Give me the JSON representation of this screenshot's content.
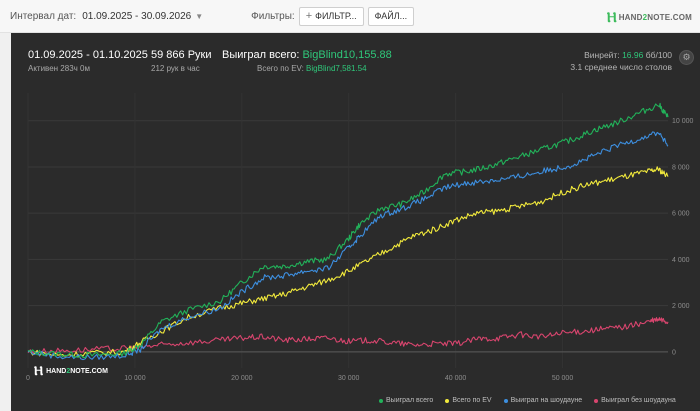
{
  "topbar": {
    "interval_label": "Интервал дат:",
    "date_range": "01.09.2025 - 30.09.2026",
    "filters_label": "Фильтры:",
    "filter_button": "ФИЛЬТР...",
    "file_button": "ФАЙЛ...",
    "logo_prefix": "HAND",
    "logo_two": "2",
    "logo_suffix": "NOTE.COM"
  },
  "header": {
    "period": "01.09.2025 - 01.10.2025",
    "active": "Активен 283ч 0м",
    "hands": "59 866 Руки",
    "hands_per_hour": "212 рук в час",
    "won_total_label": "Выиграл всего:",
    "won_total_value": "BigBlind10,155.88",
    "ev_label": "Всего по EV:",
    "ev_value": "BigBlind7,581.54",
    "winrate_label": "Винрейт:",
    "winrate_value": "16.96",
    "winrate_unit": "бб/100",
    "tables": "3.1 среднее число столов"
  },
  "watermark": {
    "prefix": "HAND",
    "two": "2",
    "suffix": "NOTE.COM"
  },
  "colors": {
    "won_total": "#22b25a",
    "ev": "#f2ea3c",
    "showdown": "#3d8fe0",
    "no_showdown": "#d8456e"
  },
  "chart_data": {
    "type": "line",
    "x_ticks": [
      "0",
      "10 000",
      "20 000",
      "30 000",
      "40 000",
      "50 000"
    ],
    "y_ticks": [
      "0",
      "2 000",
      "4 000",
      "6 000",
      "8 000",
      "10 000"
    ],
    "xlim": [
      0,
      59866
    ],
    "ylim": [
      -700,
      11200
    ],
    "grid": true,
    "legend_position": "bottom-right",
    "series": [
      {
        "name": "Выиграл всего",
        "color": "#22b25a",
        "x": [
          0,
          3000,
          6000,
          9000,
          10500,
          12500,
          15000,
          18000,
          20000,
          22000,
          24000,
          26000,
          28000,
          30000,
          31000,
          33000,
          35000,
          37000,
          39000,
          41000,
          43000,
          45000,
          47000,
          49000,
          51000,
          53000,
          55000,
          57000,
          59000,
          59866
        ],
        "y": [
          0,
          -100,
          -150,
          -50,
          300,
          1300,
          1800,
          2200,
          3000,
          3700,
          3700,
          3900,
          4000,
          4900,
          5500,
          6200,
          6400,
          6900,
          7700,
          7800,
          8000,
          8300,
          8600,
          8900,
          9200,
          9600,
          9900,
          10300,
          10700,
          10156
        ]
      },
      {
        "name": "Всего по EV",
        "color": "#f2ea3c",
        "x": [
          0,
          3000,
          6000,
          9000,
          10500,
          12500,
          15000,
          18000,
          20000,
          22000,
          24000,
          26000,
          28000,
          30000,
          32000,
          34000,
          36000,
          38000,
          40000,
          42000,
          44000,
          46000,
          48000,
          50000,
          52000,
          54000,
          56000,
          58000,
          59000,
          59866
        ],
        "y": [
          0,
          -150,
          -50,
          0,
          400,
          900,
          1500,
          1900,
          2100,
          2300,
          2500,
          2800,
          3100,
          3500,
          4000,
          4500,
          5000,
          5300,
          5700,
          6000,
          6100,
          6300,
          6500,
          6900,
          7200,
          7400,
          7600,
          7800,
          7900,
          7582
        ]
      },
      {
        "name": "Выиграл на шоудауне",
        "color": "#3d8fe0",
        "x": [
          0,
          3000,
          6000,
          9000,
          10500,
          12500,
          15000,
          18000,
          20000,
          22000,
          24000,
          26000,
          28000,
          30000,
          31000,
          33000,
          35000,
          37000,
          39000,
          41000,
          43000,
          45000,
          47000,
          49000,
          51000,
          53000,
          55000,
          57000,
          59000,
          59866
        ],
        "y": [
          0,
          -200,
          -250,
          -150,
          100,
          1000,
          1500,
          1900,
          2600,
          3200,
          3300,
          3500,
          3600,
          4500,
          5000,
          5900,
          6200,
          6600,
          7100,
          7300,
          7400,
          7500,
          7700,
          7900,
          8100,
          8500,
          8900,
          9200,
          9500,
          8900
        ]
      },
      {
        "name": "Выиграл без шоудауна",
        "color": "#d8456e",
        "x": [
          0,
          3000,
          6000,
          9000,
          10500,
          12500,
          15000,
          18000,
          20000,
          22000,
          24000,
          26000,
          28000,
          30000,
          32000,
          34000,
          36000,
          38000,
          40000,
          42000,
          44000,
          46000,
          48000,
          50000,
          52000,
          54000,
          56000,
          58000,
          59000,
          59866
        ],
        "y": [
          0,
          50,
          100,
          150,
          200,
          300,
          400,
          500,
          600,
          650,
          500,
          550,
          600,
          450,
          500,
          400,
          300,
          350,
          350,
          550,
          600,
          750,
          650,
          800,
          900,
          1000,
          1100,
          1300,
          1400,
          1300
        ]
      }
    ]
  }
}
